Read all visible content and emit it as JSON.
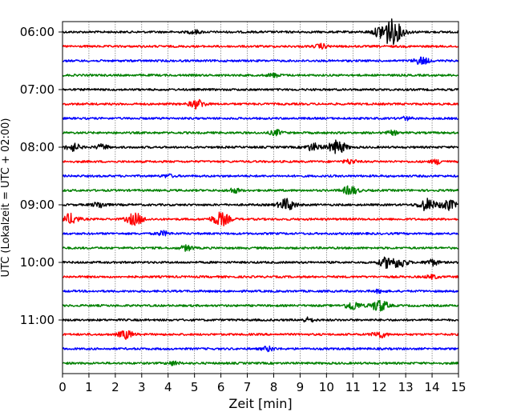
{
  "chart_data": {
    "type": "line",
    "title": "",
    "xlabel": "Zeit  [min]",
    "ylabel": "UTC (Lokalzeit = UTC + 02:00)",
    "xlim": [
      0,
      15
    ],
    "x_ticks": [
      "0",
      "1",
      "2",
      "3",
      "4",
      "5",
      "6",
      "7",
      "8",
      "9",
      "10",
      "11",
      "12",
      "13",
      "14",
      "15"
    ],
    "y_tick_labels": [
      "06:00",
      "07:00",
      "08:00",
      "09:00",
      "10:00",
      "11:00"
    ],
    "grid": {
      "x": true,
      "y": false
    },
    "legend": "none",
    "trace_interval_minutes": 15,
    "trace_colors": [
      "#000000",
      "#ff0000",
      "#0000ff",
      "#008000"
    ],
    "traces": [
      {
        "start": "06:00",
        "color": "#000000",
        "events": [
          {
            "t": 12.4,
            "amp": 3.5
          },
          {
            "t": 5.0,
            "amp": 0.5
          }
        ]
      },
      {
        "start": "06:15",
        "color": "#ff0000",
        "events": [
          {
            "t": 9.8,
            "amp": 0.6
          }
        ]
      },
      {
        "start": "06:30",
        "color": "#0000ff",
        "events": [
          {
            "t": 13.6,
            "amp": 1.0
          }
        ]
      },
      {
        "start": "06:45",
        "color": "#008000",
        "events": [
          {
            "t": 8.0,
            "amp": 0.5
          }
        ]
      },
      {
        "start": "07:00",
        "color": "#000000",
        "events": []
      },
      {
        "start": "07:15",
        "color": "#ff0000",
        "events": [
          {
            "t": 5.1,
            "amp": 1.2
          }
        ]
      },
      {
        "start": "07:30",
        "color": "#0000ff",
        "events": [
          {
            "t": 13.0,
            "amp": 0.4
          }
        ]
      },
      {
        "start": "07:45",
        "color": "#008000",
        "events": [
          {
            "t": 8.1,
            "amp": 0.7
          },
          {
            "t": 12.5,
            "amp": 0.5
          }
        ]
      },
      {
        "start": "08:00",
        "color": "#000000",
        "events": [
          {
            "t": 0.4,
            "amp": 1.0
          },
          {
            "t": 1.5,
            "amp": 0.7
          },
          {
            "t": 9.5,
            "amp": 1.0
          },
          {
            "t": 10.4,
            "amp": 1.8
          }
        ]
      },
      {
        "start": "08:15",
        "color": "#ff0000",
        "events": [
          {
            "t": 10.9,
            "amp": 0.6
          },
          {
            "t": 14.2,
            "amp": 0.6
          }
        ]
      },
      {
        "start": "08:30",
        "color": "#0000ff",
        "events": [
          {
            "t": 4.0,
            "amp": 0.4
          }
        ]
      },
      {
        "start": "08:45",
        "color": "#008000",
        "events": [
          {
            "t": 6.5,
            "amp": 0.6
          },
          {
            "t": 10.9,
            "amp": 1.2
          }
        ]
      },
      {
        "start": "09:00",
        "color": "#000000",
        "events": [
          {
            "t": 1.4,
            "amp": 0.8
          },
          {
            "t": 8.5,
            "amp": 1.6
          },
          {
            "t": 13.8,
            "amp": 1.6
          },
          {
            "t": 14.6,
            "amp": 1.4
          }
        ]
      },
      {
        "start": "09:15",
        "color": "#ff0000",
        "events": [
          {
            "t": 0.3,
            "amp": 1.4
          },
          {
            "t": 2.75,
            "amp": 1.6
          },
          {
            "t": 6.0,
            "amp": 1.8
          }
        ]
      },
      {
        "start": "09:30",
        "color": "#0000ff",
        "events": [
          {
            "t": 3.8,
            "amp": 0.6
          }
        ]
      },
      {
        "start": "09:45",
        "color": "#008000",
        "events": [
          {
            "t": 4.7,
            "amp": 0.7
          }
        ]
      },
      {
        "start": "10:00",
        "color": "#000000",
        "events": [
          {
            "t": 12.3,
            "amp": 1.4
          },
          {
            "t": 12.8,
            "amp": 1.2
          },
          {
            "t": 14.0,
            "amp": 0.8
          }
        ]
      },
      {
        "start": "10:15",
        "color": "#ff0000",
        "events": [
          {
            "t": 14.0,
            "amp": 0.5
          }
        ]
      },
      {
        "start": "10:30",
        "color": "#0000ff",
        "events": [
          {
            "t": 12.0,
            "amp": 0.4
          }
        ]
      },
      {
        "start": "10:45",
        "color": "#008000",
        "events": [
          {
            "t": 11.0,
            "amp": 1.2
          },
          {
            "t": 12.0,
            "amp": 1.6
          }
        ]
      },
      {
        "start": "11:00",
        "color": "#000000",
        "events": [
          {
            "t": 9.3,
            "amp": 0.6
          }
        ]
      },
      {
        "start": "11:15",
        "color": "#ff0000",
        "events": [
          {
            "t": 2.4,
            "amp": 1.1
          },
          {
            "t": 12.0,
            "amp": 0.9
          }
        ]
      },
      {
        "start": "11:30",
        "color": "#0000ff",
        "events": [
          {
            "t": 7.8,
            "amp": 0.6
          }
        ]
      },
      {
        "start": "11:45",
        "color": "#008000",
        "events": [
          {
            "t": 4.2,
            "amp": 0.5
          }
        ]
      }
    ]
  }
}
